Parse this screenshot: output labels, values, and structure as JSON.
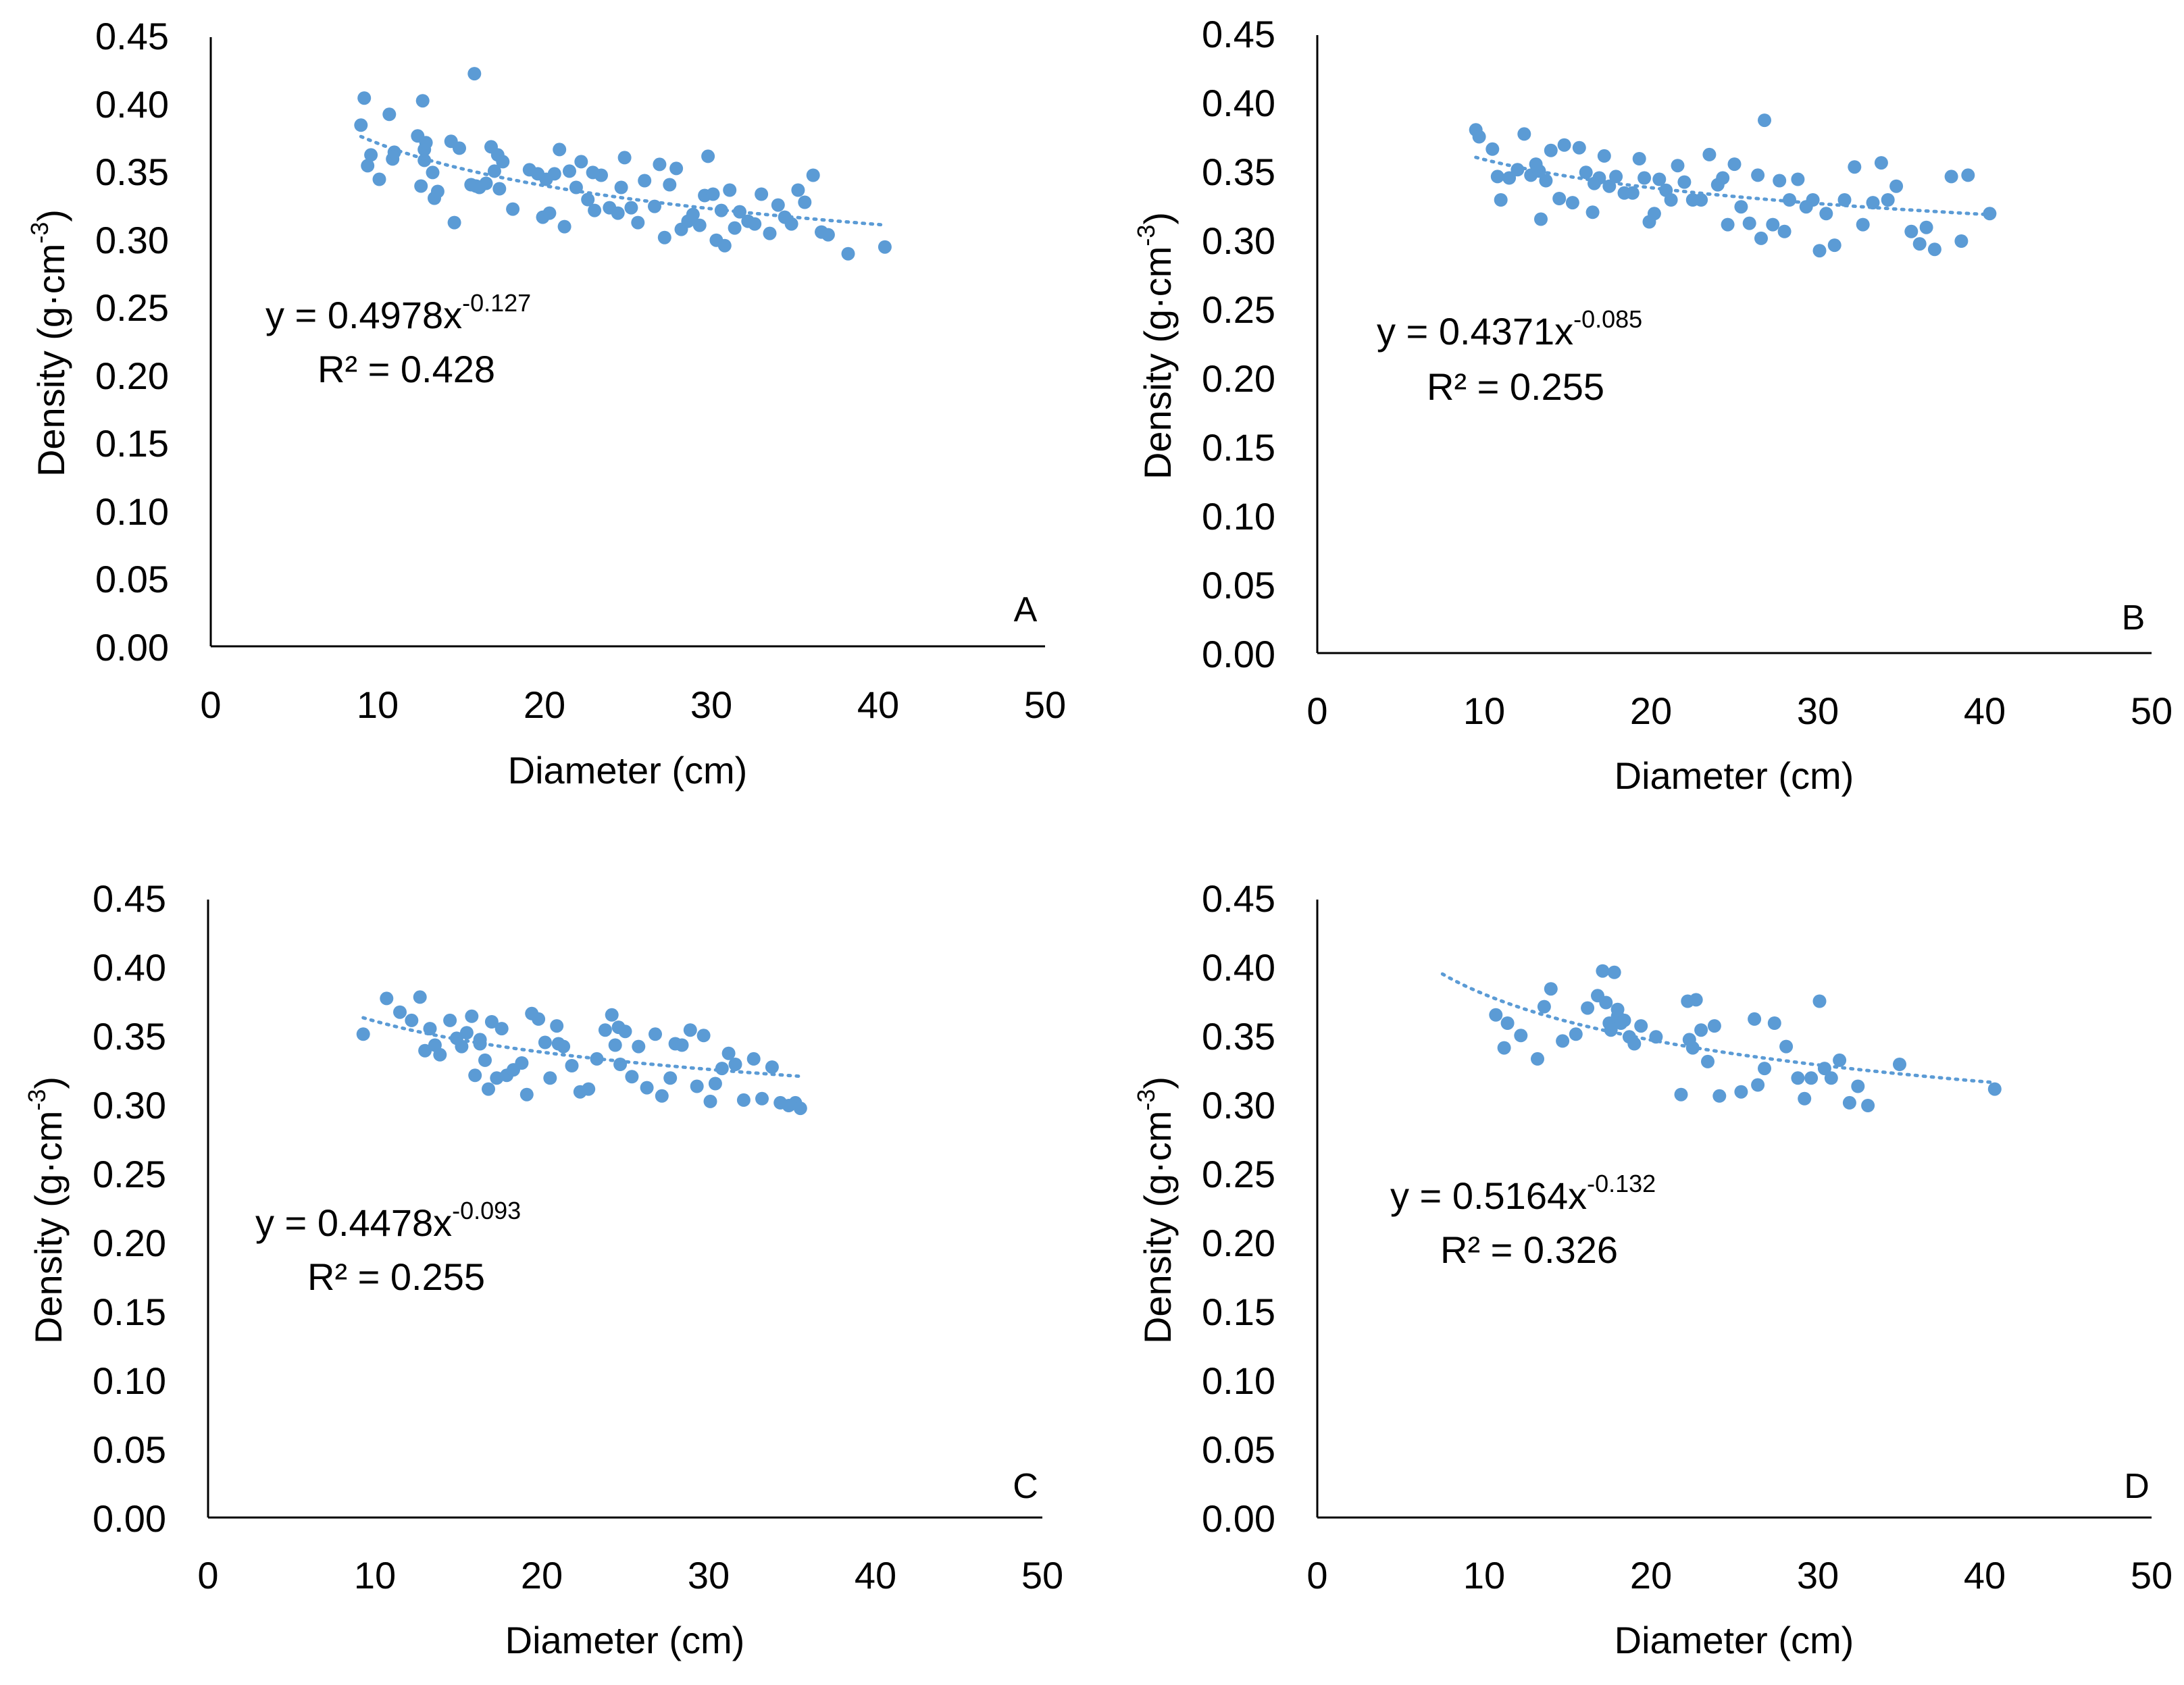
{
  "figure": {
    "marker_color": "#5B9BD5",
    "trend_color": "#5B9BD5"
  },
  "chart_data": [
    {
      "type": "scatter",
      "panel_label": "A",
      "xlabel": "Diameter (cm)",
      "ylabel_main": "Density (g·cm",
      "ylabel_sup": "-3",
      "ylabel_close": ")",
      "xlim": [
        0,
        50
      ],
      "ylim": [
        0,
        0.45
      ],
      "x_ticks": [
        "0",
        "10",
        "20",
        "30",
        "40",
        "50"
      ],
      "y_ticks": [
        "0.00",
        "0.05",
        "0.10",
        "0.15",
        "0.20",
        "0.25",
        "0.30",
        "0.35",
        "0.40",
        "0.45"
      ],
      "equation_main": "y = 0.4978x",
      "equation_exp": "-0.127",
      "r2_label": "R² = 0.428",
      "trend": {
        "a": 0.4978,
        "b": -0.127,
        "x_range": [
          9,
          40.5
        ]
      },
      "x": [
        9.0,
        9.2,
        9.4,
        9.6,
        10.1,
        10.7,
        10.9,
        11.0,
        12.4,
        12.6,
        12.7,
        12.8,
        12.9,
        13.3,
        13.4,
        13.6,
        14.4,
        14.6,
        14.9,
        15.6,
        15.8,
        16.1,
        16.5,
        16.8,
        17.0,
        17.2,
        17.3,
        17.5,
        18.1,
        19.1,
        19.6,
        19.9,
        20.1,
        20.3,
        20.6,
        20.9,
        21.2,
        21.5,
        21.9,
        22.2,
        22.6,
        23.0,
        23.4,
        23.9,
        24.4,
        24.6,
        24.8,
        25.2,
        25.6,
        26.0,
        26.6,
        26.9,
        27.2,
        27.5,
        27.9,
        28.2,
        28.6,
        28.9,
        29.3,
        29.6,
        29.8,
        30.1,
        30.3,
        30.6,
        30.8,
        31.1,
        31.4,
        31.7,
        32.2,
        32.6,
        33.0,
        33.5,
        34.0,
        34.4,
        34.8,
        35.2,
        35.6,
        36.1,
        36.6,
        37.0,
        38.2,
        40.4,
        15.9,
        12.8,
        22.9
      ],
      "y": [
        0.385,
        0.405,
        0.355,
        0.363,
        0.345,
        0.393,
        0.36,
        0.365,
        0.377,
        0.34,
        0.403,
        0.367,
        0.372,
        0.35,
        0.331,
        0.336,
        0.373,
        0.313,
        0.368,
        0.341,
        0.423,
        0.339,
        0.342,
        0.369,
        0.351,
        0.363,
        0.338,
        0.358,
        0.323,
        0.352,
        0.349,
        0.317,
        0.345,
        0.32,
        0.349,
        0.367,
        0.31,
        0.351,
        0.339,
        0.358,
        0.33,
        0.322,
        0.348,
        0.324,
        0.32,
        0.339,
        0.361,
        0.324,
        0.313,
        0.344,
        0.325,
        0.356,
        0.302,
        0.341,
        0.353,
        0.308,
        0.314,
        0.319,
        0.311,
        0.333,
        0.362,
        0.334,
        0.3,
        0.322,
        0.296,
        0.337,
        0.309,
        0.321,
        0.314,
        0.312,
        0.334,
        0.305,
        0.326,
        0.317,
        0.312,
        0.337,
        0.328,
        0.348,
        0.306,
        0.304,
        0.29,
        0.295,
        0.34,
        0.359,
        0.35
      ]
    },
    {
      "type": "scatter",
      "panel_label": "B",
      "xlabel": "Diameter (cm)",
      "ylabel_main": "Density (g·cm",
      "ylabel_sup": "-3",
      "ylabel_close": ")",
      "xlim": [
        0,
        50
      ],
      "ylim": [
        0,
        0.45
      ],
      "x_ticks": [
        "0",
        "10",
        "20",
        "30",
        "40",
        "50"
      ],
      "y_ticks": [
        "0.00",
        "0.05",
        "0.10",
        "0.15",
        "0.20",
        "0.25",
        "0.30",
        "0.35",
        "0.40",
        "0.45"
      ],
      "equation_main": "y = 0.4371x",
      "equation_exp": "-0.085",
      "r2_label": "R² = 0.255",
      "trend": {
        "a": 0.4371,
        "b": -0.085,
        "x_range": [
          9.5,
          40.3
        ]
      },
      "x": [
        9.5,
        9.7,
        10.5,
        10.8,
        11.0,
        11.5,
        12.0,
        12.4,
        12.8,
        13.1,
        13.4,
        13.7,
        14.0,
        14.5,
        14.8,
        15.3,
        15.7,
        16.1,
        16.5,
        16.9,
        17.2,
        17.5,
        17.9,
        18.4,
        18.9,
        19.3,
        19.6,
        19.9,
        20.2,
        20.5,
        20.9,
        21.2,
        21.6,
        22.0,
        22.5,
        23.0,
        23.5,
        24.0,
        24.3,
        24.6,
        25.0,
        25.4,
        25.9,
        26.4,
        26.8,
        27.3,
        27.7,
        28.0,
        28.3,
        28.8,
        29.3,
        29.7,
        30.1,
        30.5,
        31.0,
        31.6,
        32.2,
        32.7,
        33.3,
        33.8,
        34.2,
        34.7,
        35.6,
        36.1,
        36.5,
        37.0,
        38.0,
        38.6,
        39.0,
        40.3,
        13.3,
        26.6,
        16.6
      ],
      "y": [
        0.381,
        0.376,
        0.367,
        0.347,
        0.33,
        0.346,
        0.352,
        0.378,
        0.348,
        0.356,
        0.316,
        0.344,
        0.366,
        0.331,
        0.37,
        0.328,
        0.368,
        0.35,
        0.321,
        0.346,
        0.362,
        0.34,
        0.347,
        0.335,
        0.335,
        0.36,
        0.346,
        0.314,
        0.32,
        0.345,
        0.337,
        0.33,
        0.355,
        0.343,
        0.33,
        0.33,
        0.363,
        0.341,
        0.346,
        0.312,
        0.356,
        0.325,
        0.313,
        0.348,
        0.388,
        0.312,
        0.344,
        0.307,
        0.33,
        0.345,
        0.325,
        0.33,
        0.293,
        0.32,
        0.297,
        0.33,
        0.354,
        0.312,
        0.328,
        0.357,
        0.33,
        0.34,
        0.307,
        0.298,
        0.31,
        0.294,
        0.347,
        0.3,
        0.348,
        0.32,
        0.351,
        0.302,
        0.342
      ]
    },
    {
      "type": "scatter",
      "panel_label": "C",
      "xlabel": "Diameter (cm)",
      "ylabel_main": "Density (g·cm",
      "ylabel_sup": "-3",
      "ylabel_close": ")",
      "xlim": [
        0,
        50
      ],
      "ylim": [
        0,
        0.45
      ],
      "x_ticks": [
        "0",
        "10",
        "20",
        "30",
        "40",
        "50"
      ],
      "y_ticks": [
        "0.00",
        "0.05",
        "0.10",
        "0.15",
        "0.20",
        "0.25",
        "0.30",
        "0.35",
        "0.40",
        "0.45"
      ],
      "equation_main": "y = 0.4478x",
      "equation_exp": "-0.093",
      "r2_label": "R² = 0.255",
      "trend": {
        "a": 0.4478,
        "b": -0.093,
        "x_range": [
          9.3,
          35.5
        ]
      },
      "x": [
        9.3,
        10.7,
        11.5,
        12.2,
        12.7,
        13.0,
        13.3,
        13.6,
        13.9,
        14.5,
        14.9,
        15.2,
        15.5,
        15.8,
        16.0,
        16.3,
        16.6,
        16.8,
        17.0,
        17.3,
        17.6,
        17.9,
        18.3,
        18.8,
        19.1,
        19.4,
        19.8,
        20.2,
        20.5,
        20.9,
        21.3,
        21.8,
        22.3,
        22.8,
        23.3,
        23.8,
        24.2,
        24.4,
        24.7,
        25.0,
        25.4,
        25.8,
        26.3,
        26.8,
        27.2,
        27.7,
        28.0,
        28.4,
        28.9,
        29.3,
        29.7,
        30.1,
        30.4,
        30.8,
        31.2,
        31.6,
        32.1,
        32.7,
        33.2,
        33.8,
        34.3,
        34.8,
        35.2,
        35.5,
        16.3,
        24.6,
        21.0
      ],
      "y": [
        0.352,
        0.378,
        0.368,
        0.362,
        0.379,
        0.34,
        0.356,
        0.344,
        0.337,
        0.362,
        0.349,
        0.343,
        0.353,
        0.365,
        0.322,
        0.345,
        0.333,
        0.312,
        0.361,
        0.32,
        0.356,
        0.322,
        0.326,
        0.331,
        0.308,
        0.367,
        0.363,
        0.346,
        0.32,
        0.358,
        0.343,
        0.329,
        0.31,
        0.312,
        0.334,
        0.355,
        0.366,
        0.344,
        0.33,
        0.354,
        0.321,
        0.343,
        0.313,
        0.352,
        0.307,
        0.32,
        0.345,
        0.344,
        0.355,
        0.314,
        0.351,
        0.303,
        0.316,
        0.327,
        0.338,
        0.33,
        0.304,
        0.334,
        0.305,
        0.328,
        0.302,
        0.3,
        0.302,
        0.298,
        0.348,
        0.357,
        0.345
      ]
    },
    {
      "type": "scatter",
      "panel_label": "D",
      "xlabel": "Diameter (cm)",
      "ylabel_main": "Density (g·cm",
      "ylabel_sup": "-3",
      "ylabel_close": ")",
      "xlim": [
        0,
        50
      ],
      "ylim": [
        0,
        0.45
      ],
      "x_ticks": [
        "0",
        "10",
        "20",
        "30",
        "40",
        "50"
      ],
      "y_ticks": [
        "0.00",
        "0.05",
        "0.10",
        "0.15",
        "0.20",
        "0.25",
        "0.30",
        "0.35",
        "0.40",
        "0.45"
      ],
      "equation_main": "y = 0.5164x",
      "equation_exp": "-0.132",
      "r2_label": "R² = 0.326",
      "trend": {
        "a": 0.5164,
        "b": -0.132,
        "x_range": [
          7.5,
          40.5
        ]
      },
      "x": [
        10.7,
        11.2,
        11.4,
        12.2,
        13.2,
        13.6,
        14.0,
        14.7,
        15.5,
        16.2,
        16.8,
        17.1,
        17.3,
        17.5,
        17.6,
        17.8,
        18.0,
        18.2,
        18.4,
        18.7,
        19.0,
        19.4,
        20.3,
        21.8,
        22.2,
        22.7,
        22.5,
        23.0,
        23.4,
        23.8,
        24.1,
        25.4,
        26.2,
        26.4,
        26.8,
        27.4,
        28.1,
        28.8,
        29.2,
        29.6,
        30.1,
        30.4,
        30.8,
        31.3,
        31.9,
        32.4,
        33.0,
        34.9,
        40.6,
        18.0,
        22.3
      ],
      "y": [
        0.366,
        0.342,
        0.36,
        0.351,
        0.334,
        0.372,
        0.385,
        0.347,
        0.352,
        0.371,
        0.38,
        0.398,
        0.375,
        0.36,
        0.355,
        0.397,
        0.365,
        0.36,
        0.362,
        0.35,
        0.345,
        0.358,
        0.35,
        0.308,
        0.376,
        0.377,
        0.342,
        0.355,
        0.332,
        0.358,
        0.307,
        0.31,
        0.363,
        0.315,
        0.327,
        0.36,
        0.343,
        0.32,
        0.305,
        0.32,
        0.376,
        0.327,
        0.32,
        0.333,
        0.302,
        0.314,
        0.3,
        0.33,
        0.312,
        0.37,
        0.348
      ]
    }
  ]
}
